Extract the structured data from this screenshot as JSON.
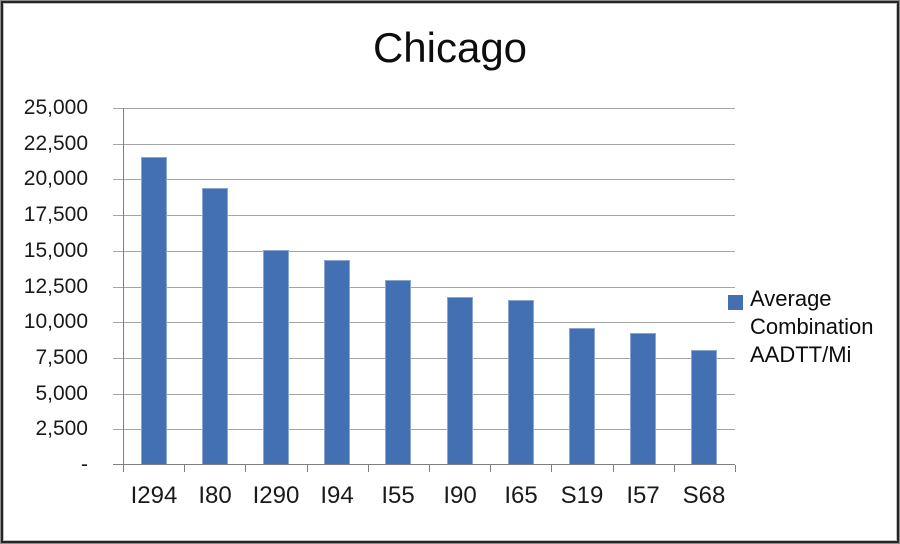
{
  "chart_data": {
    "type": "bar",
    "title": "Chicago",
    "categories": [
      "I294",
      "I80",
      "I290",
      "I94",
      "I55",
      "I90",
      "I65",
      "S19",
      "I57",
      "S68"
    ],
    "values": [
      21500,
      19300,
      15000,
      14300,
      12900,
      11700,
      11500,
      9500,
      9200,
      8000
    ],
    "series_name": "Average Combination AADTT/Mi",
    "xlabel": "",
    "ylabel": "",
    "ylim": [
      0,
      25000
    ],
    "ytick_step": 2500,
    "y_tick_labels": [
      "-",
      "2,500",
      "5,000",
      "7,500",
      "10,000",
      "12,500",
      "15,000",
      "17,500",
      "20,000",
      "22,500",
      "25,000"
    ],
    "grid": true,
    "legend_position": "right"
  },
  "colors": {
    "bar_fill": "#4370b2",
    "bar_edge": "#8ca6d0",
    "gridline": "#a5a5a5",
    "axis_line": "#7f7f7f",
    "title_text": "#0d0d0d",
    "tick_text": "#1a1a1a",
    "chart_border": "#262626",
    "background": "#ffffff"
  }
}
